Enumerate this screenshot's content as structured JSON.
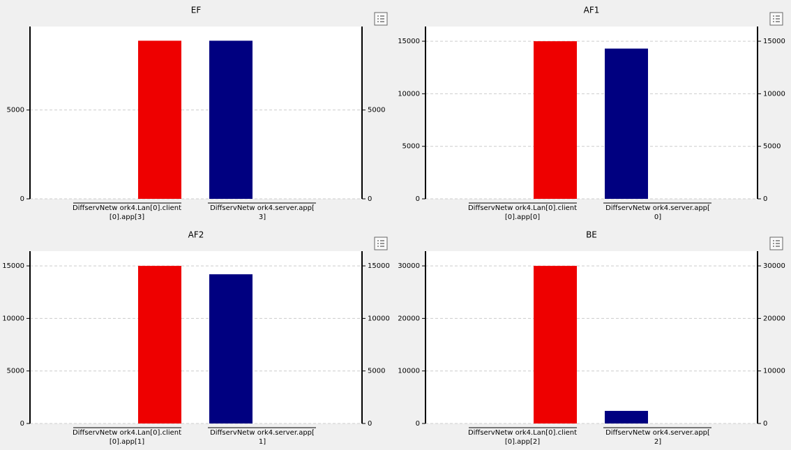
{
  "chart_data": [
    {
      "type": "bar",
      "title": "EF",
      "categories": [
        [
          "DiffservNetw ork4.Lan[0].client",
          "[0].app[3]"
        ],
        [
          "DiffservNetw ork4.server.app[",
          "3]"
        ]
      ],
      "values": [
        8900,
        8900
      ],
      "colors": [
        "#ee0000",
        "#000080"
      ],
      "ylim": [
        0,
        9700
      ],
      "yticks": [
        0,
        5000
      ],
      "grid": true
    },
    {
      "type": "bar",
      "title": "AF1",
      "categories": [
        [
          "DiffservNetw ork4.Lan[0].client",
          "[0].app[0]"
        ],
        [
          "DiffservNetw ork4.server.app[",
          "0]"
        ]
      ],
      "values": [
        15000,
        14300
      ],
      "colors": [
        "#ee0000",
        "#000080"
      ],
      "ylim": [
        0,
        16400
      ],
      "yticks": [
        0,
        5000,
        10000,
        15000
      ],
      "grid": true
    },
    {
      "type": "bar",
      "title": "AF2",
      "categories": [
        [
          "DiffservNetw ork4.Lan[0].client",
          "[0].app[1]"
        ],
        [
          "DiffservNetw ork4.server.app[",
          "1]"
        ]
      ],
      "values": [
        15000,
        14200
      ],
      "colors": [
        "#ee0000",
        "#000080"
      ],
      "ylim": [
        0,
        16400
      ],
      "yticks": [
        0,
        5000,
        10000,
        15000
      ],
      "grid": true
    },
    {
      "type": "bar",
      "title": "BE",
      "categories": [
        [
          "DiffservNetw ork4.Lan[0].client",
          "[0].app[2]"
        ],
        [
          "DiffservNetw ork4.server.app[",
          "2]"
        ]
      ],
      "values": [
        30000,
        2400
      ],
      "colors": [
        "#ee0000",
        "#000080"
      ],
      "ylim": [
        0,
        32800
      ],
      "yticks": [
        0,
        10000,
        20000,
        30000
      ],
      "grid": true
    }
  ]
}
